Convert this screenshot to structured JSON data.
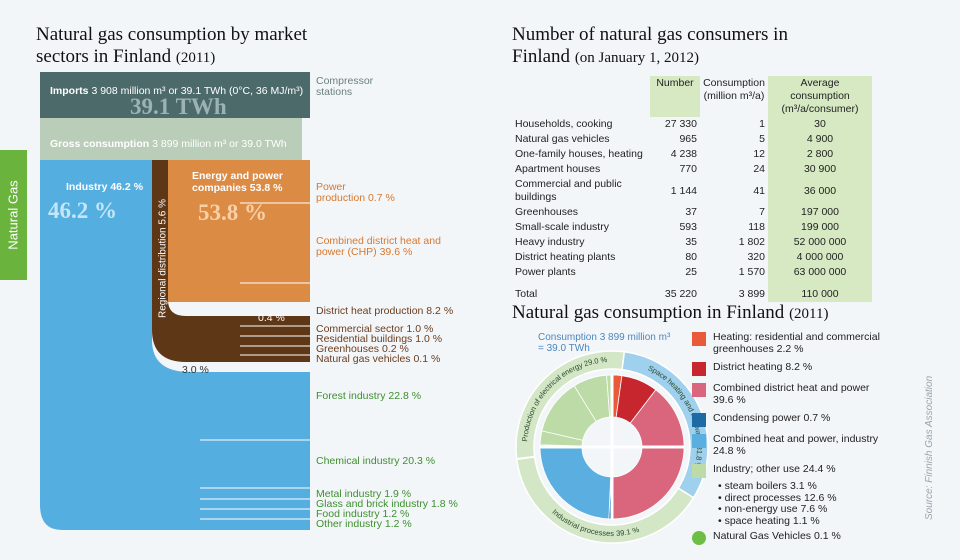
{
  "side_label": "Natural Gas",
  "source": "Source: Finnish Gas Association",
  "sankey": {
    "title": "Natural gas consumption by market sectors in Finland",
    "title_year": "(2011)",
    "imports_label": "Imports",
    "imports_text": "3 908 million m³ or 39.1 TWh (0°C, 36 MJ/m³)",
    "imports_big": "39.1 TWh",
    "gross_label": "Gross consumption",
    "gross_text": "3 899 million m³ or 39.0 TWh",
    "industry_label": "Industry 46.2 %",
    "industry_big": "46.2 %",
    "energy_label": "Energy and power companies 53.8 %",
    "energy_big": "53.8 %",
    "regional_label": "Regional distribution 5.6 %",
    "flow_label_a": "0.4  %",
    "flow_label_b": "3.0 %",
    "outputs": {
      "compressor": "Compressor stations",
      "power": "Power production 0.7 %",
      "chp": "Combined district heat and power (CHP) 39.6 %",
      "district": "District heat production 8.2 %",
      "commercial": "Commercial sector 1.0 %",
      "residential": "Residential buildings 1.0 %",
      "greenhouses": "Greenhouses 0.2 %",
      "vehicles": "Natural gas vehicles 0.1 %",
      "forest": "Forest industry 22.8 %",
      "chemical": "Chemical industry 20.3 %",
      "metal": "Metal industry 1.9 %",
      "glass": "Glass and brick industry 1.8 %",
      "food": "Food industry 1.2 %",
      "other": "Other industry 1.2 %"
    }
  },
  "table": {
    "title": "Number of natural gas consumers in Finland",
    "title_date": "(on January 1, 2012)",
    "headers": [
      "Number",
      "Consumption (million m³/a)",
      "Average consumption (m³/a/consumer)"
    ],
    "rows": [
      [
        "Households, cooking",
        "27 330",
        "1",
        "30"
      ],
      [
        "Natural gas vehicles",
        "965",
        "5",
        "4 900"
      ],
      [
        "One-family houses, heating",
        "4 238",
        "12",
        "2 800"
      ],
      [
        "Apartment houses",
        "770",
        "24",
        "30 900"
      ],
      [
        "Commercial and public buildings",
        "1 144",
        "41",
        "36 000"
      ],
      [
        "Greenhouses",
        "37",
        "7",
        "197 000"
      ],
      [
        "Small-scale industry",
        "593",
        "118",
        "199 000"
      ],
      [
        "Heavy industry",
        "35",
        "1 802",
        "52 000 000"
      ],
      [
        "District heating plants",
        "80",
        "320",
        "4 000 000"
      ],
      [
        "Power plants",
        "25",
        "1 570",
        "63 000 000"
      ]
    ],
    "total": [
      "Total",
      "35 220",
      "3 899",
      "110 000"
    ]
  },
  "chart_data": {
    "type": "pie",
    "title": "Natural gas consumption in Finland",
    "title_year": "(2011)",
    "subtitle": "Consumption 3 899 million m³ = 39.0 TWh",
    "categories": [
      "Heating: residential and commercial greenhouses 2.2 %",
      "District heating 8.2 %",
      "Combined district heat and power 39.6 %",
      "Condensing power 0.7 %",
      "Combined heat and power, industry 24.8 %",
      "steam boilers 3.1 %",
      "direct processes 12.6 %",
      "non-energy use 7.6 %",
      "space heating 1.1 %",
      "Natural Gas Vehicles 0.1 %"
    ],
    "values": [
      2.2,
      8.2,
      39.6,
      0.7,
      24.8,
      3.1,
      12.6,
      7.6,
      1.1,
      0.1
    ],
    "colors": [
      "#e85a3a",
      "#c8262f",
      "#d9667c",
      "#1d6aa5",
      "#5aaee0",
      "#bcdba7",
      "#bcdba7",
      "#bcdba7",
      "#bcdba7",
      "#6cbf45"
    ],
    "group_label": "Industry; other use 24.4 %",
    "group_color": "#bcdba7",
    "outer_ring": {
      "labels": [
        "Production of electrical energy 29.0 %",
        "Space heating and hot water 31.8 %",
        "Industrial processes 39.1 %"
      ],
      "values": [
        29.0,
        31.8,
        39.1
      ],
      "colors": [
        "#d3e6c6",
        "#9fd0ee",
        "#d3e6c6"
      ]
    }
  }
}
